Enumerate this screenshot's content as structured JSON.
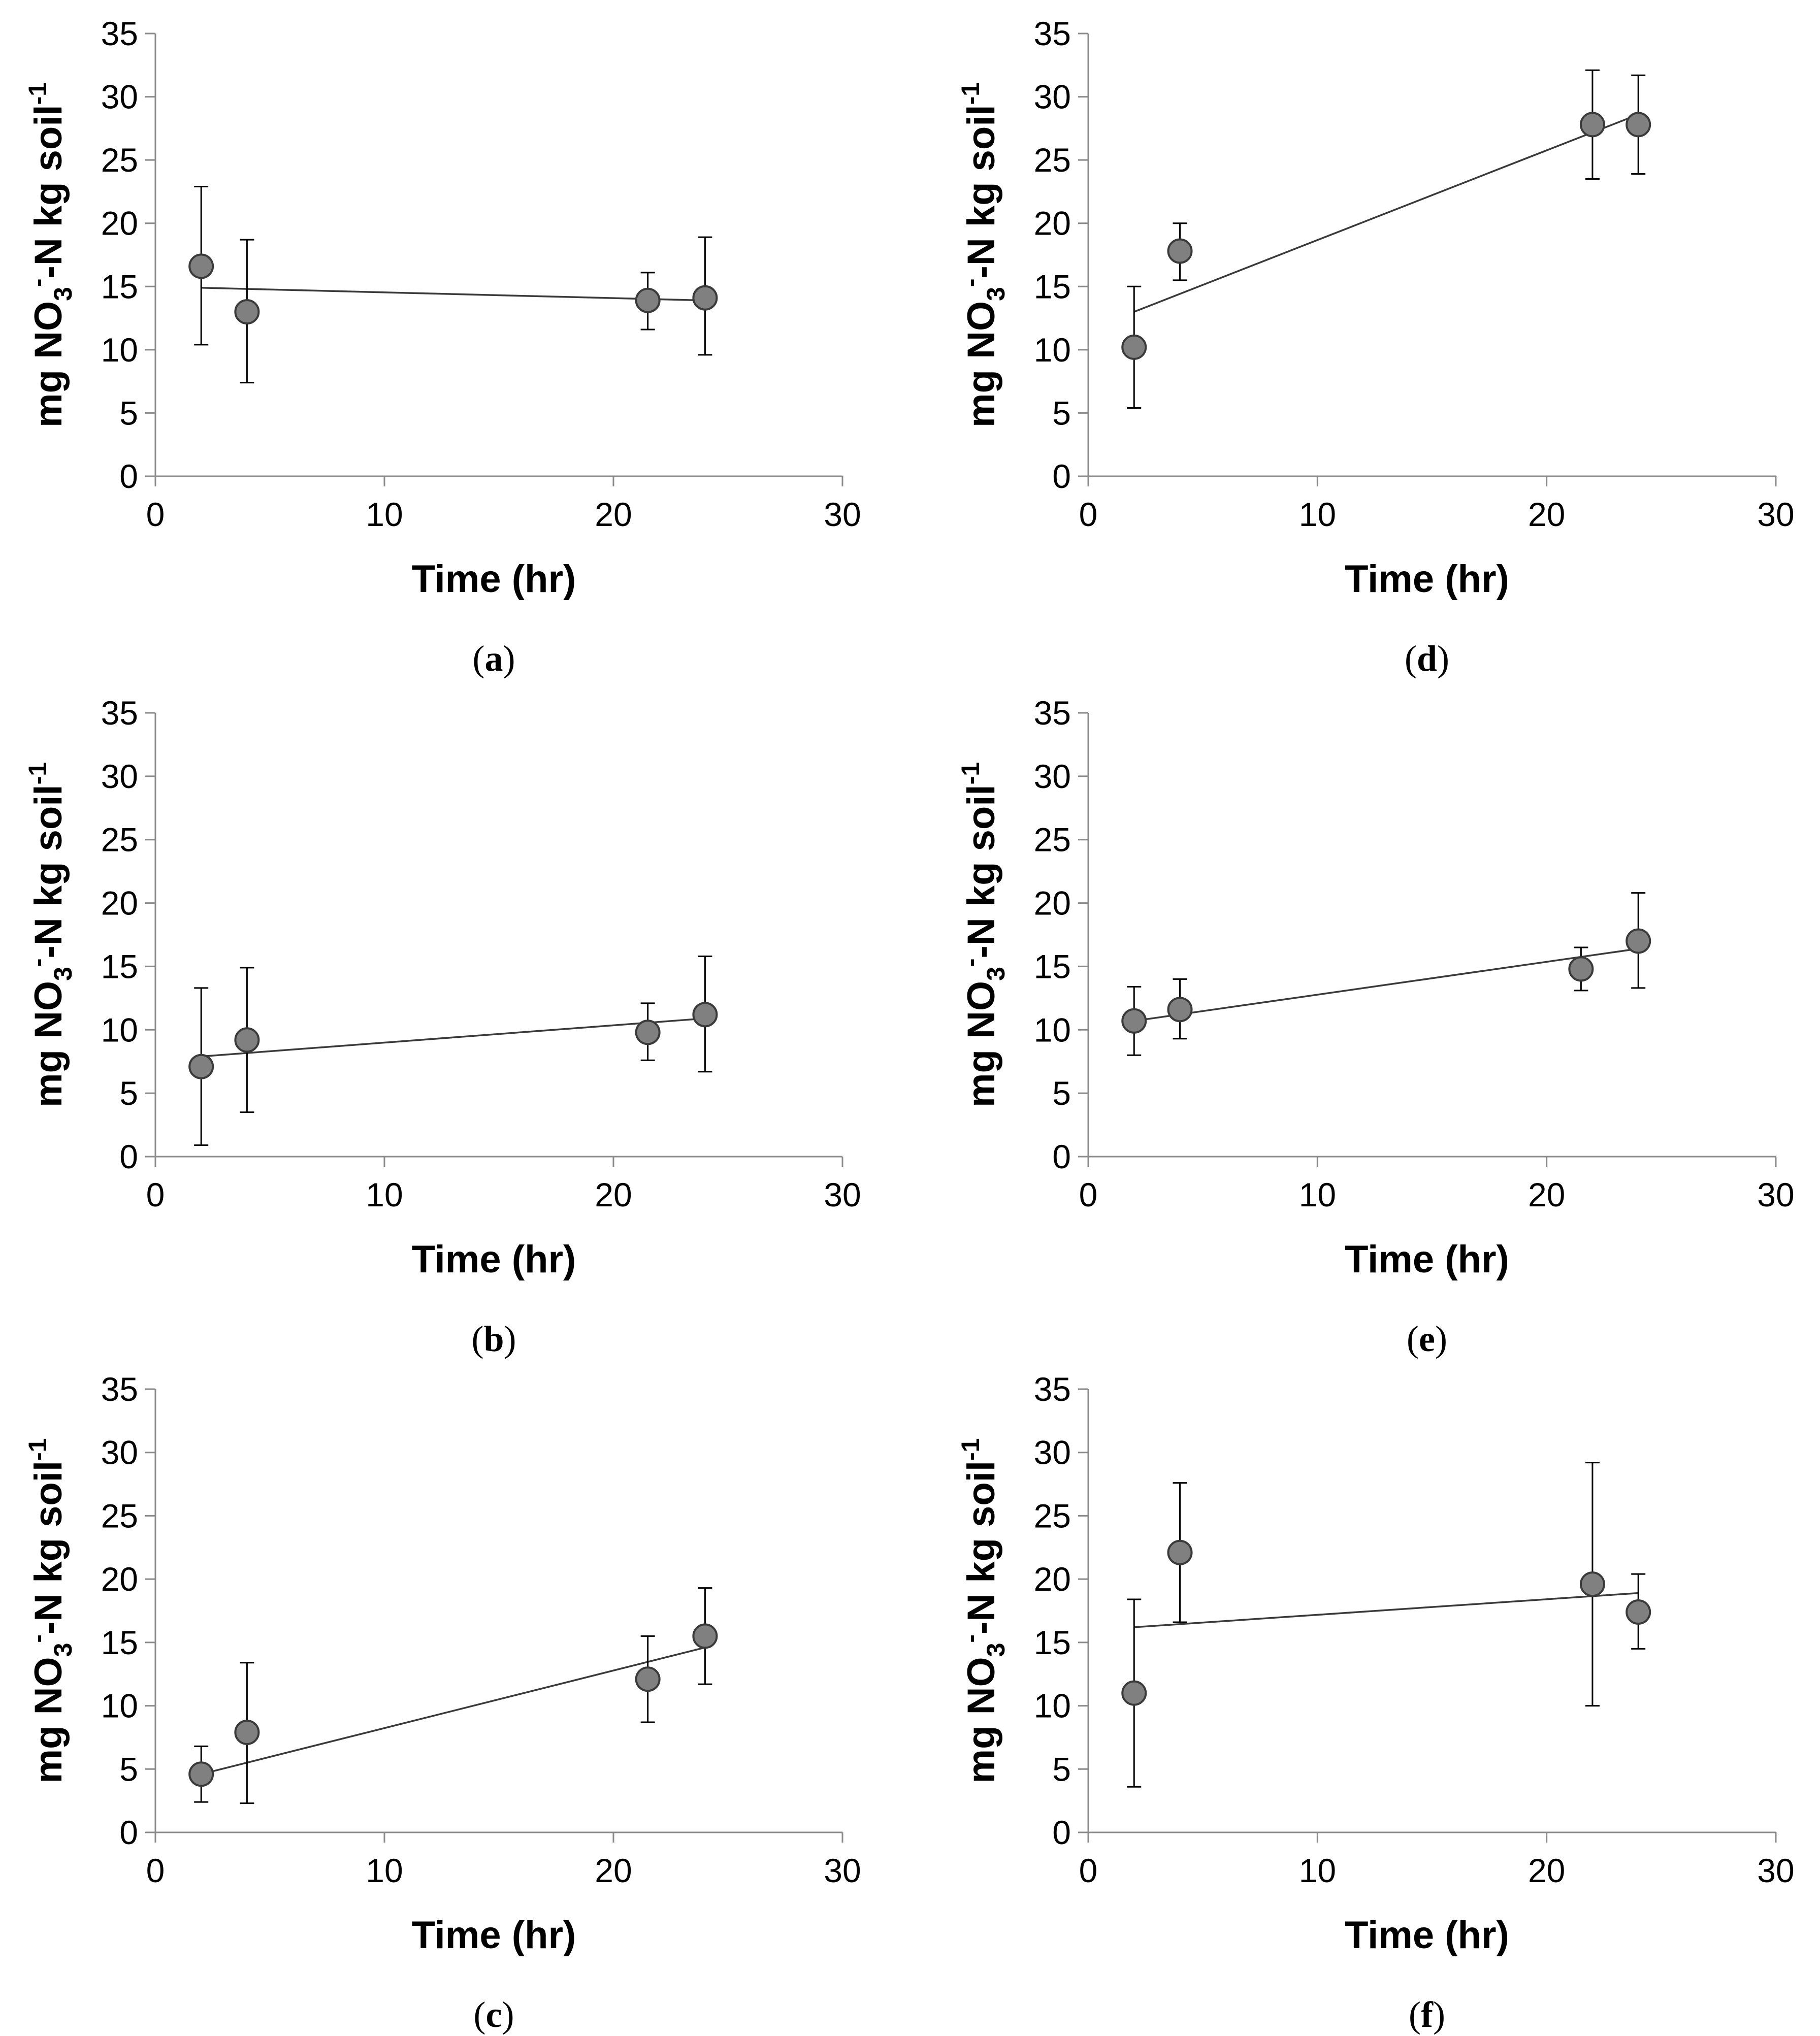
{
  "chart_data": [
    {
      "id": "a",
      "panel_label": "a",
      "type": "scatter",
      "xlabel": "Time (hr)",
      "ylabel": {
        "prefix": "mg NO",
        "sub": "3",
        "sup1": "-",
        "mid": "-N kg soil",
        "sup2": "-1"
      },
      "xlim": [
        0,
        30
      ],
      "ylim": [
        0,
        35
      ],
      "xticks": [
        0,
        10,
        20,
        30
      ],
      "yticks": [
        0,
        5,
        10,
        15,
        20,
        25,
        30,
        35
      ],
      "points": [
        {
          "x": 2,
          "y": 16.6,
          "err_low": 10.4,
          "err_high": 22.9
        },
        {
          "x": 4,
          "y": 13.0,
          "err_low": 7.4,
          "err_high": 18.7
        },
        {
          "x": 21.5,
          "y": 13.9,
          "err_low": 11.6,
          "err_high": 16.1
        },
        {
          "x": 24,
          "y": 14.1,
          "err_low": 9.6,
          "err_high": 18.9
        }
      ],
      "trendline": {
        "x": [
          2,
          24
        ],
        "y": [
          14.9,
          13.9
        ]
      }
    },
    {
      "id": "b",
      "panel_label": "b",
      "type": "scatter",
      "xlabel": "Time (hr)",
      "ylabel": {
        "prefix": "mg NO",
        "sub": "3",
        "sup1": "-",
        "mid": "-N kg soil",
        "sup2": "-1"
      },
      "xlim": [
        0,
        30
      ],
      "ylim": [
        0,
        35
      ],
      "xticks": [
        0,
        10,
        20,
        30
      ],
      "yticks": [
        0,
        5,
        10,
        15,
        20,
        25,
        30,
        35
      ],
      "points": [
        {
          "x": 2,
          "y": 7.1,
          "err_low": 0.9,
          "err_high": 13.3
        },
        {
          "x": 4,
          "y": 9.2,
          "err_low": 3.5,
          "err_high": 14.9
        },
        {
          "x": 21.5,
          "y": 9.8,
          "err_low": 7.6,
          "err_high": 12.1
        },
        {
          "x": 24,
          "y": 11.2,
          "err_low": 6.7,
          "err_high": 15.8
        }
      ],
      "trendline": {
        "x": [
          2,
          24
        ],
        "y": [
          7.9,
          10.9
        ]
      }
    },
    {
      "id": "c",
      "panel_label": "c",
      "type": "scatter",
      "xlabel": "Time (hr)",
      "ylabel": {
        "prefix": "mg NO",
        "sub": "3",
        "sup1": "-",
        "mid": "-N kg soil",
        "sup2": "-1"
      },
      "xlim": [
        0,
        30
      ],
      "ylim": [
        0,
        35
      ],
      "xticks": [
        0,
        10,
        20,
        30
      ],
      "yticks": [
        0,
        5,
        10,
        15,
        20,
        25,
        30,
        35
      ],
      "points": [
        {
          "x": 2,
          "y": 4.6,
          "err_low": 2.4,
          "err_high": 6.8
        },
        {
          "x": 4,
          "y": 7.9,
          "err_low": 2.3,
          "err_high": 13.4
        },
        {
          "x": 21.5,
          "y": 12.1,
          "err_low": 8.7,
          "err_high": 15.5
        },
        {
          "x": 24,
          "y": 15.5,
          "err_low": 11.7,
          "err_high": 19.3
        }
      ],
      "trendline": {
        "x": [
          2,
          24
        ],
        "y": [
          4.6,
          14.6
        ]
      }
    },
    {
      "id": "d",
      "panel_label": "d",
      "type": "scatter",
      "xlabel": "Time (hr)",
      "ylabel": {
        "prefix": "mg NO",
        "sub": "3",
        "sup1": "-",
        "mid": "-N kg soil",
        "sup2": "-1"
      },
      "xlim": [
        0,
        30
      ],
      "ylim": [
        0,
        35
      ],
      "xticks": [
        0,
        10,
        20,
        30
      ],
      "yticks": [
        0,
        5,
        10,
        15,
        20,
        25,
        30,
        35
      ],
      "points": [
        {
          "x": 2,
          "y": 10.2,
          "err_low": 5.4,
          "err_high": 15.0
        },
        {
          "x": 4,
          "y": 17.8,
          "err_low": 15.5,
          "err_high": 20.0
        },
        {
          "x": 22,
          "y": 27.8,
          "err_low": 23.5,
          "err_high": 32.1
        },
        {
          "x": 24,
          "y": 27.8,
          "err_low": 23.9,
          "err_high": 31.7
        }
      ],
      "trendline": {
        "x": [
          2,
          24
        ],
        "y": [
          13.0,
          28.6
        ]
      }
    },
    {
      "id": "e",
      "panel_label": "e",
      "type": "scatter",
      "xlabel": "Time (hr)",
      "ylabel": {
        "prefix": "mg NO",
        "sub": "3",
        "sup1": "-",
        "mid": "-N kg soil",
        "sup2": "-1"
      },
      "xlim": [
        0,
        30
      ],
      "ylim": [
        0,
        35
      ],
      "xticks": [
        0,
        10,
        20,
        30
      ],
      "yticks": [
        0,
        5,
        10,
        15,
        20,
        25,
        30,
        35
      ],
      "points": [
        {
          "x": 2,
          "y": 10.7,
          "err_low": 8.0,
          "err_high": 13.4
        },
        {
          "x": 4,
          "y": 11.6,
          "err_low": 9.3,
          "err_high": 14.0
        },
        {
          "x": 21.5,
          "y": 14.8,
          "err_low": 13.1,
          "err_high": 16.5
        },
        {
          "x": 24,
          "y": 17.0,
          "err_low": 13.3,
          "err_high": 20.8
        }
      ],
      "trendline": {
        "x": [
          2,
          24
        ],
        "y": [
          10.7,
          16.4
        ]
      }
    },
    {
      "id": "f",
      "panel_label": "f",
      "type": "scatter",
      "xlabel": "Time (hr)",
      "ylabel": {
        "prefix": "mg NO",
        "sub": "3",
        "sup1": "-",
        "mid": "-N kg soil",
        "sup2": "-1"
      },
      "xlim": [
        0,
        30
      ],
      "ylim": [
        0,
        35
      ],
      "xticks": [
        0,
        10,
        20,
        30
      ],
      "yticks": [
        0,
        5,
        10,
        15,
        20,
        25,
        30,
        35
      ],
      "points": [
        {
          "x": 2,
          "y": 11.0,
          "err_low": 3.6,
          "err_high": 18.4
        },
        {
          "x": 4,
          "y": 22.1,
          "err_low": 16.6,
          "err_high": 27.6
        },
        {
          "x": 22,
          "y": 19.6,
          "err_low": 10.0,
          "err_high": 29.2
        },
        {
          "x": 24,
          "y": 17.4,
          "err_low": 14.5,
          "err_high": 20.4
        }
      ],
      "trendline": {
        "x": [
          2,
          24
        ],
        "y": [
          16.2,
          18.9
        ]
      }
    }
  ]
}
